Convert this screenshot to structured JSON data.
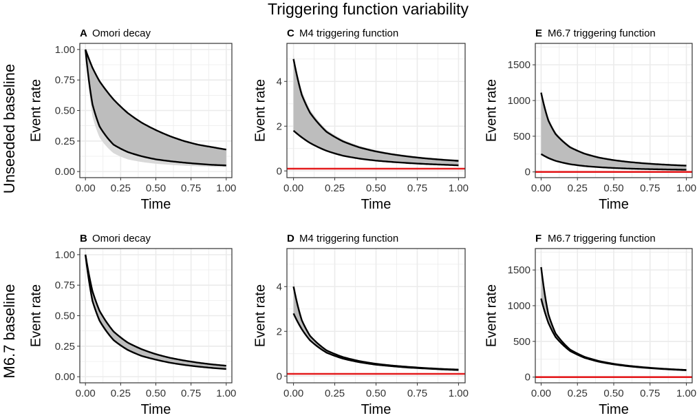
{
  "figure": {
    "title": "Triggering  function variability",
    "row_labels": [
      "Unseeded baseline",
      "M6.7 baseline"
    ]
  },
  "colors": {
    "envelope": "#000000",
    "spread": "#bdbdbd",
    "spread_light": "#d9d9d9",
    "baseline": "#e31a1c",
    "grid": "#ebebeb",
    "frame": "#333333"
  },
  "chart_data": [
    {
      "id": "A",
      "type": "line",
      "tag": "A",
      "title": "Omori decay",
      "xlabel": "Time",
      "ylabel": "Event rate",
      "xlim": [
        -0.04,
        1.04
      ],
      "ylim": [
        -0.05,
        1.05
      ],
      "xticks": [
        0,
        0.25,
        0.5,
        0.75,
        1
      ],
      "xtick_labels": [
        "0.00",
        "0.25",
        "0.50",
        "0.75",
        "1.00"
      ],
      "yticks": [
        0,
        0.25,
        0.5,
        0.75,
        1
      ],
      "ytick_labels": [
        "0.00",
        "0.25",
        "0.50",
        "0.75",
        "1.00"
      ],
      "baseline": null,
      "upper": {
        "x": [
          0,
          0.05,
          0.1,
          0.2,
          0.3,
          0.4,
          0.5,
          0.6,
          0.7,
          0.8,
          0.9,
          1.0
        ],
        "y": [
          1.0,
          0.85,
          0.74,
          0.59,
          0.48,
          0.4,
          0.34,
          0.29,
          0.25,
          0.22,
          0.2,
          0.18
        ]
      },
      "lower": {
        "x": [
          0,
          0.05,
          0.1,
          0.2,
          0.3,
          0.4,
          0.5,
          0.6,
          0.7,
          0.8,
          0.9,
          1.0
        ],
        "y": [
          1.0,
          0.55,
          0.37,
          0.22,
          0.16,
          0.125,
          0.1,
          0.085,
          0.073,
          0.063,
          0.055,
          0.05
        ]
      },
      "spread": {
        "x": [
          0,
          0.05,
          0.1,
          0.2,
          0.3,
          0.4,
          0.5,
          0.6,
          0.7,
          0.8,
          0.9,
          1.0
        ],
        "y": [
          1.0,
          0.45,
          0.28,
          0.15,
          0.1,
          0.078,
          0.064,
          0.055,
          0.048,
          0.043,
          0.039,
          0.036
        ]
      }
    },
    {
      "id": "B",
      "type": "line",
      "tag": "B",
      "title": "Omori decay",
      "xlabel": "Time",
      "ylabel": "Event rate",
      "xlim": [
        -0.04,
        1.04
      ],
      "ylim": [
        -0.05,
        1.05
      ],
      "xticks": [
        0,
        0.25,
        0.5,
        0.75,
        1
      ],
      "xtick_labels": [
        "0.00",
        "0.25",
        "0.50",
        "0.75",
        "1.00"
      ],
      "yticks": [
        0,
        0.25,
        0.5,
        0.75,
        1
      ],
      "ytick_labels": [
        "0.00",
        "0.25",
        "0.50",
        "0.75",
        "1.00"
      ],
      "baseline": null,
      "upper": {
        "x": [
          0,
          0.05,
          0.1,
          0.2,
          0.3,
          0.4,
          0.5,
          0.6,
          0.7,
          0.8,
          0.9,
          1.0
        ],
        "y": [
          1.0,
          0.7,
          0.54,
          0.37,
          0.28,
          0.225,
          0.185,
          0.155,
          0.133,
          0.115,
          0.101,
          0.09
        ]
      },
      "lower": {
        "x": [
          0,
          0.05,
          0.1,
          0.2,
          0.3,
          0.4,
          0.5,
          0.6,
          0.7,
          0.8,
          0.9,
          1.0
        ],
        "y": [
          1.0,
          0.62,
          0.46,
          0.3,
          0.22,
          0.17,
          0.14,
          0.115,
          0.097,
          0.083,
          0.072,
          0.063
        ]
      },
      "spread": {
        "x": [
          0,
          0.05,
          0.1,
          0.2,
          0.3,
          0.4,
          0.5,
          0.6,
          0.7,
          0.8,
          0.9,
          1.0
        ],
        "y": [
          1.0,
          0.6,
          0.44,
          0.29,
          0.21,
          0.165,
          0.135,
          0.112,
          0.095,
          0.081,
          0.07,
          0.062
        ]
      }
    },
    {
      "id": "C",
      "type": "line",
      "tag": "C",
      "title": "M4 triggering function",
      "xlabel": "Time",
      "ylabel": "Event rate",
      "xlim": [
        -0.04,
        1.04
      ],
      "ylim": [
        -0.3,
        5.7
      ],
      "xticks": [
        0,
        0.25,
        0.5,
        0.75,
        1
      ],
      "xtick_labels": [
        "0.00",
        "0.25",
        "0.50",
        "0.75",
        "1.00"
      ],
      "yticks": [
        0,
        2,
        4
      ],
      "ytick_labels": [
        "0",
        "2",
        "4"
      ],
      "baseline": 0.1,
      "upper": {
        "x": [
          0,
          0.05,
          0.1,
          0.2,
          0.3,
          0.4,
          0.5,
          0.6,
          0.7,
          0.8,
          0.9,
          1.0
        ],
        "y": [
          5.0,
          3.4,
          2.6,
          1.75,
          1.32,
          1.05,
          0.87,
          0.74,
          0.64,
          0.56,
          0.5,
          0.45
        ]
      },
      "lower": {
        "x": [
          0,
          0.05,
          0.1,
          0.2,
          0.3,
          0.4,
          0.5,
          0.6,
          0.7,
          0.8,
          0.9,
          1.0
        ],
        "y": [
          1.8,
          1.5,
          1.25,
          0.9,
          0.68,
          0.55,
          0.46,
          0.4,
          0.35,
          0.31,
          0.28,
          0.25
        ]
      },
      "spread": {
        "x": [
          0,
          0.05,
          0.1,
          0.2,
          0.3,
          0.4,
          0.5,
          0.6,
          0.7,
          0.8,
          0.9,
          1.0
        ],
        "y": [
          5.2,
          3.6,
          2.75,
          1.85,
          1.4,
          1.12,
          0.93,
          0.79,
          0.69,
          0.61,
          0.55,
          0.5
        ]
      }
    },
    {
      "id": "D",
      "type": "line",
      "tag": "D",
      "title": "M4 triggering function",
      "xlabel": "Time",
      "ylabel": "Event rate",
      "xlim": [
        -0.04,
        1.04
      ],
      "ylim": [
        -0.3,
        5.7
      ],
      "xticks": [
        0,
        0.25,
        0.5,
        0.75,
        1
      ],
      "xtick_labels": [
        "0.00",
        "0.25",
        "0.50",
        "0.75",
        "1.00"
      ],
      "yticks": [
        0,
        2,
        4
      ],
      "ytick_labels": [
        "0",
        "2",
        "4"
      ],
      "baseline": 0.1,
      "upper": {
        "x": [
          0,
          0.05,
          0.1,
          0.2,
          0.3,
          0.4,
          0.5,
          0.6,
          0.7,
          0.8,
          0.9,
          1.0
        ],
        "y": [
          4.0,
          2.5,
          1.8,
          1.15,
          0.85,
          0.67,
          0.55,
          0.47,
          0.41,
          0.36,
          0.32,
          0.29
        ]
      },
      "lower": {
        "x": [
          0,
          0.05,
          0.1,
          0.2,
          0.3,
          0.4,
          0.5,
          0.6,
          0.7,
          0.8,
          0.9,
          1.0
        ],
        "y": [
          2.8,
          2.1,
          1.6,
          1.05,
          0.78,
          0.62,
          0.51,
          0.44,
          0.38,
          0.34,
          0.3,
          0.27
        ]
      },
      "spread": {
        "x": [
          0,
          0.05,
          0.1,
          0.2,
          0.3,
          0.4,
          0.5,
          0.6,
          0.7,
          0.8,
          0.9,
          1.0
        ],
        "y": [
          4.3,
          2.6,
          1.85,
          1.18,
          0.87,
          0.69,
          0.57,
          0.48,
          0.42,
          0.37,
          0.33,
          0.3
        ]
      }
    },
    {
      "id": "E",
      "type": "line",
      "tag": "E",
      "title": "M6.7 triggering function",
      "xlabel": "Time",
      "ylabel": "Event rate",
      "xlim": [
        -0.04,
        1.04
      ],
      "ylim": [
        -80,
        1800
      ],
      "xticks": [
        0,
        0.25,
        0.5,
        0.75,
        1
      ],
      "xtick_labels": [
        "0.00",
        "0.25",
        "0.50",
        "0.75",
        "1.00"
      ],
      "yticks": [
        0,
        500,
        1000,
        1500
      ],
      "ytick_labels": [
        "0",
        "500",
        "1000",
        "1500"
      ],
      "baseline": 0,
      "upper": {
        "x": [
          0,
          0.05,
          0.1,
          0.2,
          0.3,
          0.4,
          0.5,
          0.6,
          0.7,
          0.8,
          0.9,
          1.0
        ],
        "y": [
          1110,
          720,
          530,
          345,
          255,
          200,
          165,
          140,
          122,
          108,
          97,
          88
        ]
      },
      "lower": {
        "x": [
          0,
          0.05,
          0.1,
          0.2,
          0.3,
          0.4,
          0.5,
          0.6,
          0.7,
          0.8,
          0.9,
          1.0
        ],
        "y": [
          250,
          195,
          155,
          108,
          82,
          66,
          55,
          47,
          41,
          37,
          33,
          30
        ]
      },
      "spread": {
        "x": [
          0,
          0.05,
          0.1,
          0.2,
          0.3,
          0.4,
          0.5,
          0.6,
          0.7,
          0.8,
          0.9,
          1.0
        ],
        "y": [
          1160,
          760,
          560,
          365,
          270,
          212,
          175,
          149,
          130,
          115,
          103,
          94
        ]
      }
    },
    {
      "id": "F",
      "type": "line",
      "tag": "F",
      "title": "M6.7 triggering function",
      "xlabel": "Time",
      "ylabel": "Event rate",
      "xlim": [
        -0.04,
        1.04
      ],
      "ylim": [
        -80,
        1800
      ],
      "xticks": [
        0,
        0.25,
        0.5,
        0.75,
        1
      ],
      "xtick_labels": [
        "0.00",
        "0.25",
        "0.50",
        "0.75",
        "1.00"
      ],
      "yticks": [
        0,
        500,
        1000,
        1500
      ],
      "ytick_labels": [
        "0",
        "500",
        "1000",
        "1500"
      ],
      "baseline": 0,
      "upper": {
        "x": [
          0,
          0.05,
          0.1,
          0.2,
          0.3,
          0.4,
          0.5,
          0.6,
          0.7,
          0.8,
          0.9,
          1.0
        ],
        "y": [
          1540,
          880,
          610,
          385,
          283,
          224,
          186,
          159,
          139,
          123,
          110,
          100
        ]
      },
      "lower": {
        "x": [
          0,
          0.05,
          0.1,
          0.2,
          0.3,
          0.4,
          0.5,
          0.6,
          0.7,
          0.8,
          0.9,
          1.0
        ],
        "y": [
          1100,
          760,
          560,
          365,
          270,
          214,
          178,
          152,
          133,
          118,
          106,
          96
        ]
      },
      "spread": {
        "x": [
          0,
          0.05,
          0.1,
          0.2,
          0.3,
          0.4,
          0.5,
          0.6,
          0.7,
          0.8,
          0.9,
          1.0
        ],
        "y": [
          1650,
          920,
          630,
          395,
          290,
          229,
          190,
          162,
          141,
          125,
          112,
          102
        ]
      }
    }
  ]
}
